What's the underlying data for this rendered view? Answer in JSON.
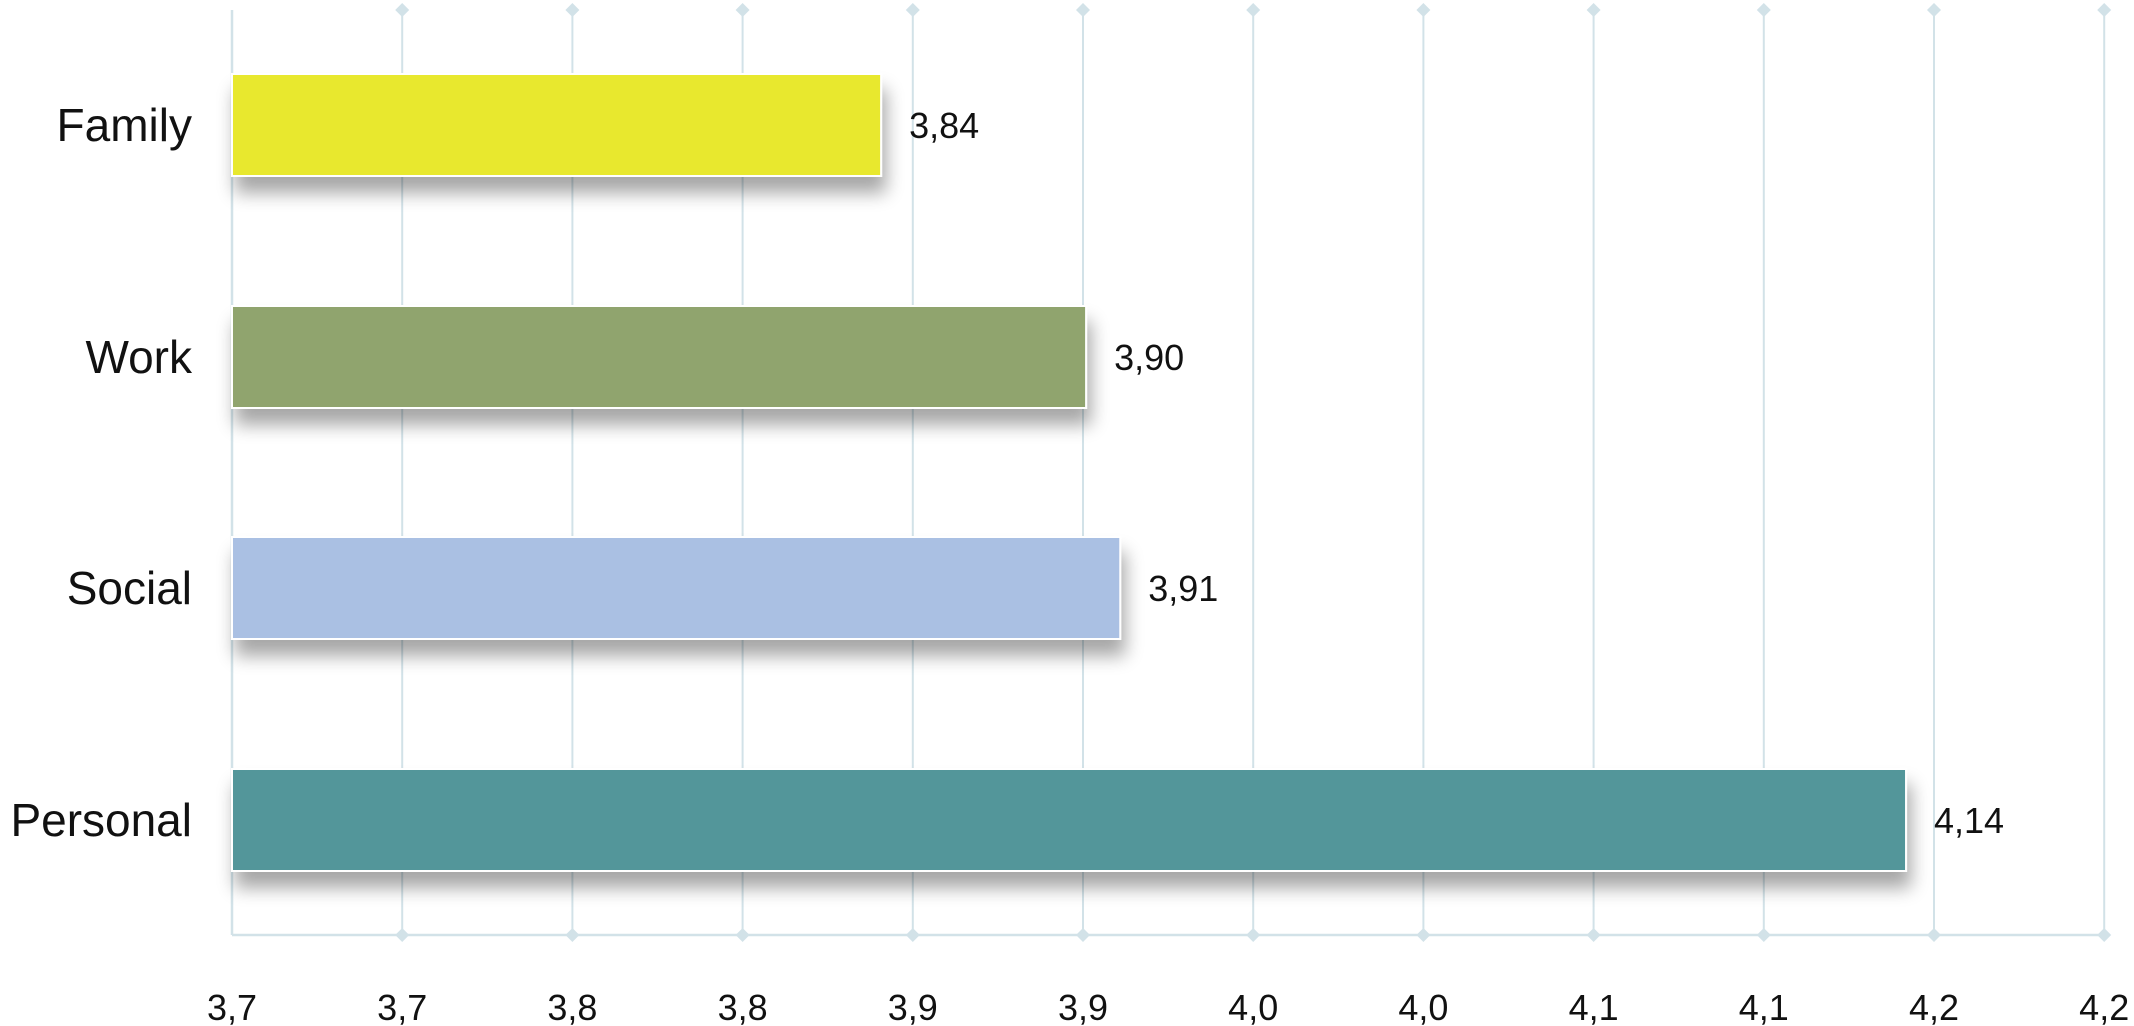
{
  "chart_data": {
    "type": "bar",
    "orientation": "horizontal",
    "categories": [
      "Family",
      "Work",
      "Social",
      "Personal"
    ],
    "values": [
      3.84,
      3.9,
      3.91,
      4.14
    ],
    "value_labels": [
      "3,84",
      "3,90",
      "3,91",
      "4,14"
    ],
    "colors": [
      "#e8e82e",
      "#90a46e",
      "#aac0e3",
      "#52969a"
    ],
    "x_ticks": [
      "3,7",
      "3,7",
      "3,8",
      "3,8",
      "3,9",
      "3,9",
      "4,0",
      "4,0",
      "4,1",
      "4,1",
      "4,2",
      "4,2"
    ],
    "xlim": [
      3.65,
      4.2
    ],
    "title": "",
    "xlabel": "",
    "ylabel": "",
    "grid": true,
    "grid_color": "#d2e2e8",
    "legend": "none"
  }
}
